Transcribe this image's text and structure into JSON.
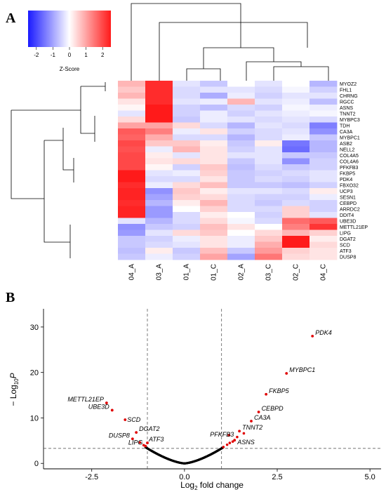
{
  "panel_a": {
    "letter": "A",
    "colorbar": {
      "label": "Z-Score",
      "ticks": [
        -2,
        -1,
        0,
        1,
        2
      ],
      "min": -2.5,
      "max": 2.5,
      "colors": {
        "low": "#1a1aff",
        "mid": "#ffffff",
        "high": "#ff1a1a"
      }
    }
  },
  "panel_b": {
    "letter": "B"
  },
  "chart_data": [
    {
      "type": "heatmap",
      "columns": [
        "04_A",
        "03_A",
        "01_A",
        "01_C",
        "02_A",
        "03_C",
        "02_C",
        "04_C"
      ],
      "rows": [
        "MYOZ2",
        "FHL1",
        "CHRNG",
        "RGCC",
        "ASNS",
        "TNNT2",
        "MYBPC3",
        "TDH",
        "CA3A",
        "MYBPC1",
        "ASB2",
        "NELL2",
        "COL4A5",
        "COL4A6",
        "PFKFB3",
        "FKBP5",
        "PDK4",
        "FBXO32",
        "UCP3",
        "SESN1",
        "CEBPD",
        "ARRDC2",
        "DDIT4",
        "UBE3D",
        "METTL21EP",
        "LIPG",
        "DGAT2",
        "SCD",
        "ATF3",
        "DUSP8"
      ],
      "values": [
        [
          0.8,
          2.3,
          -0.3,
          -0.6,
          0.0,
          -0.3,
          0.0,
          -0.8
        ],
        [
          0.6,
          2.3,
          -0.4,
          -0.3,
          -0.3,
          -0.4,
          -0.1,
          -0.5
        ],
        [
          0.8,
          2.3,
          -0.4,
          -0.9,
          -0.2,
          -0.5,
          -0.3,
          -0.3
        ],
        [
          0.3,
          2.3,
          -0.3,
          -0.2,
          0.8,
          -0.3,
          -0.2,
          -0.7
        ],
        [
          0.1,
          2.5,
          -0.5,
          -0.7,
          -0.4,
          -0.5,
          -0.1,
          -0.2
        ],
        [
          -0.3,
          2.5,
          -0.5,
          -0.2,
          -0.5,
          -0.3,
          -0.2,
          -0.1
        ],
        [
          0.4,
          2.5,
          -0.6,
          -0.2,
          -0.3,
          -0.4,
          -0.3,
          -0.4
        ],
        [
          1.0,
          1.0,
          0.4,
          -0.4,
          -0.8,
          -0.3,
          -0.4,
          -1.4
        ],
        [
          1.8,
          1.4,
          -0.2,
          0.3,
          -0.5,
          -0.4,
          -0.3,
          -1.2
        ],
        [
          1.7,
          0.9,
          -0.4,
          -0.4,
          -0.8,
          -0.4,
          -0.2,
          -0.6
        ],
        [
          2.0,
          0.6,
          0.6,
          0.2,
          -0.6,
          0.2,
          -1.5,
          -0.8
        ],
        [
          1.9,
          -0.2,
          0.8,
          0.3,
          -0.5,
          -0.3,
          -1.6,
          -0.8
        ],
        [
          2.0,
          0.2,
          -0.3,
          0.3,
          -0.3,
          -0.3,
          -0.6,
          -0.6
        ],
        [
          2.0,
          0.3,
          0.4,
          0.3,
          -0.6,
          -0.3,
          -1.2,
          -0.5
        ],
        [
          2.0,
          0.1,
          -0.5,
          0.6,
          -0.7,
          -0.4,
          -0.6,
          -0.5
        ],
        [
          2.5,
          -0.3,
          -0.2,
          0.5,
          -0.6,
          -0.5,
          -0.4,
          -0.3
        ],
        [
          2.5,
          -0.4,
          -0.4,
          0.3,
          -0.6,
          -0.4,
          -0.5,
          -0.3
        ],
        [
          2.3,
          -0.2,
          0.4,
          0.7,
          -0.6,
          -0.6,
          -0.7,
          -0.5
        ],
        [
          2.4,
          -1.2,
          0.6,
          0.2,
          -0.3,
          -0.3,
          -0.4,
          0.2
        ],
        [
          2.4,
          -1.0,
          0.5,
          0.4,
          -0.4,
          -0.5,
          -0.5,
          -0.2
        ],
        [
          2.3,
          -0.8,
          0.2,
          0.8,
          -0.4,
          -0.6,
          -0.4,
          -0.5
        ],
        [
          2.4,
          -1.1,
          0.0,
          0.5,
          -0.4,
          -0.4,
          0.5,
          -0.5
        ],
        [
          2.4,
          -1.1,
          -0.4,
          0.2,
          0.0,
          -0.5,
          0.5,
          -0.3
        ],
        [
          -0.3,
          -0.8,
          -0.4,
          0.4,
          -0.1,
          -0.4,
          1.6,
          1.8
        ],
        [
          -1.2,
          -0.6,
          -0.5,
          0.7,
          0.3,
          0.0,
          1.4,
          2.2
        ],
        [
          -1.1,
          -0.3,
          0.4,
          0.6,
          0.0,
          0.4,
          0.8,
          0.5
        ],
        [
          -0.6,
          -0.5,
          -0.2,
          0.3,
          -0.2,
          0.6,
          2.5,
          0.2
        ],
        [
          -0.6,
          -0.4,
          -0.3,
          0.3,
          -0.2,
          0.9,
          2.5,
          0.4
        ],
        [
          -0.7,
          0.2,
          -0.6,
          0.7,
          -0.6,
          1.1,
          0.5,
          0.3
        ],
        [
          -0.6,
          -0.2,
          -0.5,
          1.0,
          -1.0,
          1.5,
          0.4,
          0.3
        ]
      ]
    },
    {
      "type": "scatter",
      "xlabel_main": "Log",
      "xlabel_sub": "2",
      "xlabel_rest": " fold change",
      "ylabel_prefix": "− Log",
      "ylabel_sub": "10",
      "ylabel_var": "P",
      "xlim": [
        -3.8,
        5.3
      ],
      "ylim": [
        -1.2,
        34
      ],
      "xticks": [
        -2.5,
        0.0,
        2.5,
        5.0
      ],
      "xtick_labels": [
        "-2.5",
        "0.0",
        "2.5",
        "5.0"
      ],
      "yticks": [
        0,
        10,
        20,
        30
      ],
      "vlines": [
        -1,
        1
      ],
      "hline": 3.3,
      "significant_color": "#e00000",
      "baseline_color": "#000000",
      "labeled_points": [
        {
          "label": "PDK4",
          "x": 3.45,
          "y": 28.0
        },
        {
          "label": "MYBPC1",
          "x": 2.75,
          "y": 19.8
        },
        {
          "label": "FKBP5",
          "x": 2.2,
          "y": 15.2
        },
        {
          "label": "CEBPD",
          "x": 2.0,
          "y": 11.3
        },
        {
          "label": "CA3A",
          "x": 1.8,
          "y": 9.3
        },
        {
          "label": "TNNT2",
          "x": 1.48,
          "y": 7.1
        },
        {
          "label": "PFKFB3",
          "x": 1.2,
          "y": 6.2
        },
        {
          "label": "ASNS",
          "x": 1.35,
          "y": 5.1
        },
        {
          "label": "METTL21EP",
          "x": -2.1,
          "y": 13.3
        },
        {
          "label": "UBE3D",
          "x": -1.95,
          "y": 11.7
        },
        {
          "label": "SCD",
          "x": -1.6,
          "y": 9.6
        },
        {
          "label": "DGAT2",
          "x": -1.3,
          "y": 6.8
        },
        {
          "label": "DUSP8",
          "x": -1.4,
          "y": 5.4
        },
        {
          "label": "ATF3",
          "x": -1.0,
          "y": 4.5
        },
        {
          "label": "LIPG",
          "x": -1.05,
          "y": 3.8
        }
      ],
      "extra_significant_points": [
        {
          "x": 1.05,
          "y": 3.6
        },
        {
          "x": 1.15,
          "y": 4.1
        },
        {
          "x": 1.22,
          "y": 4.5
        },
        {
          "x": 1.3,
          "y": 4.8
        },
        {
          "x": 1.42,
          "y": 5.8
        },
        {
          "x": 1.6,
          "y": 6.6
        },
        {
          "x": -1.1,
          "y": 4.0
        },
        {
          "x": -1.2,
          "y": 4.6
        }
      ]
    }
  ]
}
